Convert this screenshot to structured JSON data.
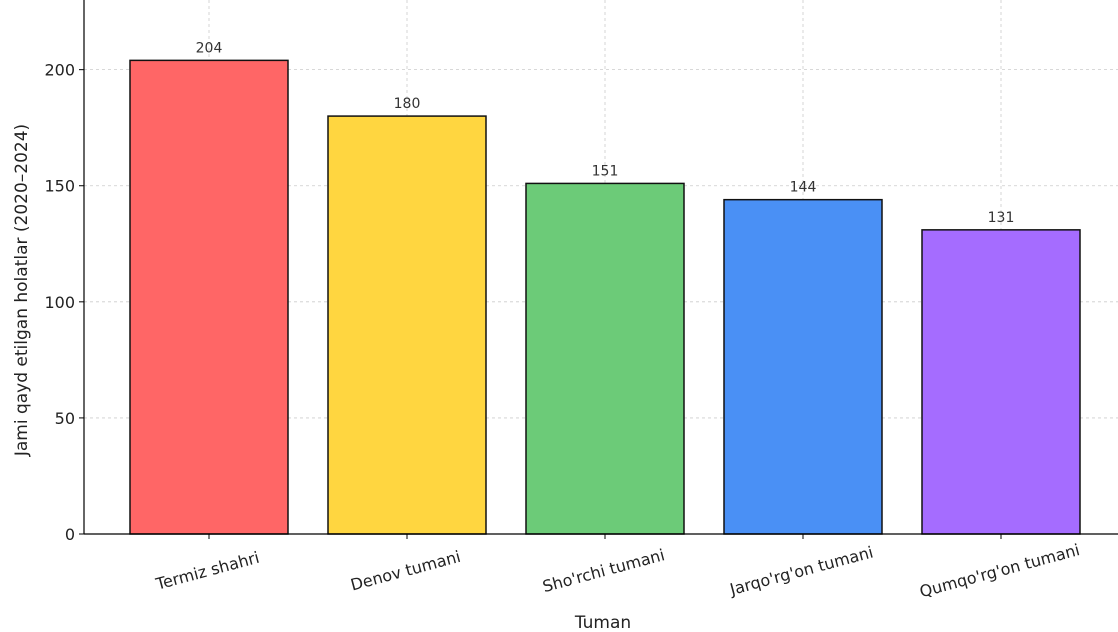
{
  "chart_data": {
    "type": "bar",
    "title": "",
    "xlabel": "Tuman",
    "ylabel": "Jami qayd etilgan holatlar (2020–2024)",
    "categories": [
      "Termiz shahri",
      "Denov tumani",
      "Sho'rchi tumani",
      "Jarqo'rg'on tumani",
      "Qumqo'rg'on tumani"
    ],
    "values": [
      204,
      180,
      151,
      144,
      131
    ],
    "colors": [
      "#ff6666",
      "#ffd640",
      "#6ccb78",
      "#4a90f5",
      "#a56cff"
    ],
    "ylim": [
      0,
      230
    ],
    "yticks": [
      0,
      50,
      100,
      150,
      200
    ],
    "grid": true,
    "legend": "none"
  }
}
